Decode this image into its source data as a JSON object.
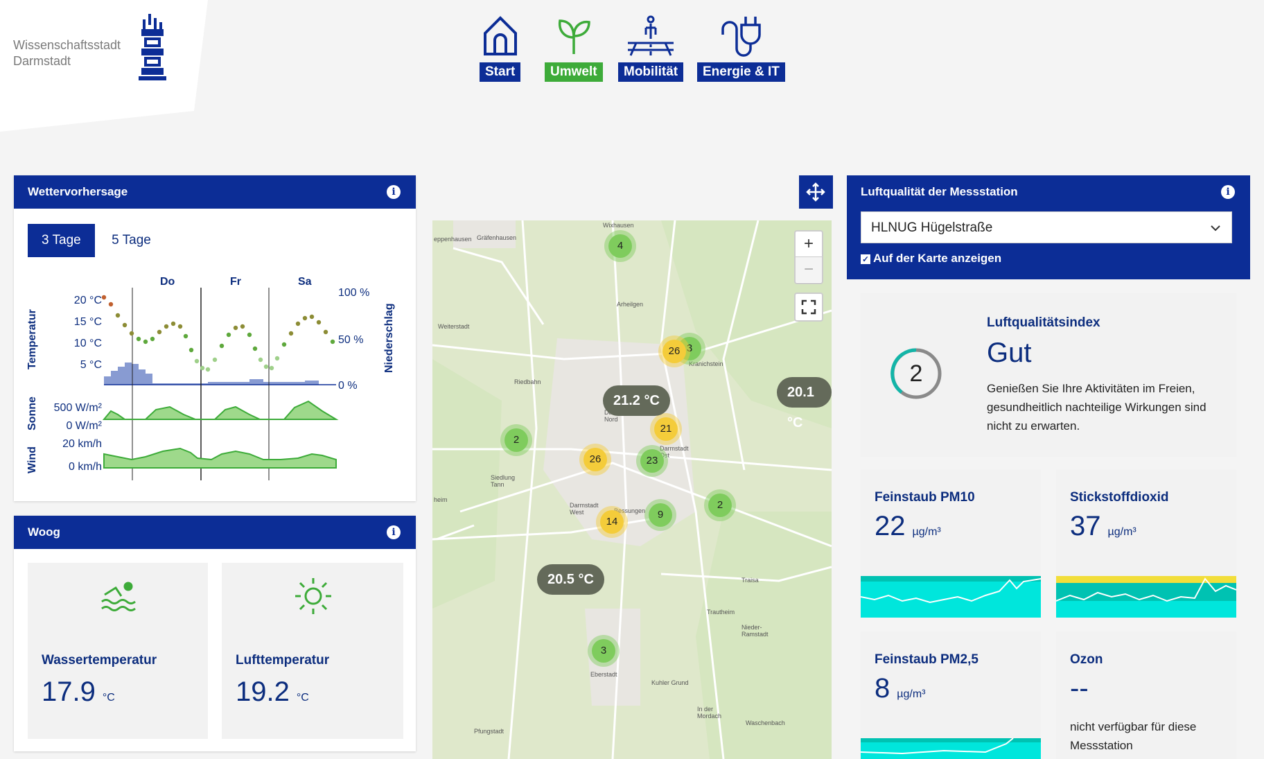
{
  "logo": {
    "line1": "Wissenschaftsstadt",
    "line2": "Darmstadt"
  },
  "nav": [
    {
      "label": "Start",
      "icon": "house-icon"
    },
    {
      "label": "Umwelt",
      "icon": "sprout-icon"
    },
    {
      "label": "Mobilität",
      "icon": "crossing-icon"
    },
    {
      "label": "Energie & IT",
      "icon": "plug-icon"
    }
  ],
  "weather": {
    "title": "Wettervorhersage",
    "tabs": [
      "3 Tage",
      "5 Tage"
    ],
    "active_tab": "3 Tage",
    "days": [
      "Do",
      "Fr",
      "Sa"
    ],
    "temp_ticks": [
      "20 °C",
      "15 °C",
      "10 °C",
      "5 °C"
    ],
    "precip_ticks": [
      "100 %",
      "50 %",
      "0 %"
    ],
    "sun_ticks": [
      "500 W/m²",
      "0 W/m²"
    ],
    "wind_ticks": [
      "20 km/h",
      "0 km/h"
    ],
    "axis_temp": "Temperatur",
    "axis_precip": "Niederschlag",
    "axis_sun": "Sonne",
    "axis_wind": "Wind"
  },
  "woog": {
    "title": "Woog",
    "water": {
      "label": "Wassertemperatur",
      "value": "17.9",
      "unit": "°C",
      "icon": "swimmer-icon"
    },
    "air": {
      "label": "Lufttemperatur",
      "value": "19.2",
      "unit": "°C",
      "icon": "sun-icon"
    }
  },
  "map": {
    "places": [
      "Wixhausen",
      "Gräfenhausen",
      "eppenhausen",
      "Arheilgen",
      "Weiterstadt",
      "Kranichstein",
      "Riedbahn",
      "Darmstadt-Nord",
      "Darmstadt Ost",
      "Siedlung Tann",
      "Darmstadt West",
      "Bessungen",
      "heim",
      "Traisa",
      "Trautheim",
      "Nieder-Ramstadt",
      "Eberstadt",
      "Kuhler Grund",
      "In der Mordach",
      "Pfungstadt",
      "Waschenbach"
    ],
    "clusters": [
      {
        "n": "4",
        "c": "g"
      },
      {
        "n": "26",
        "c": "y"
      },
      {
        "n": "3",
        "c": "g"
      },
      {
        "n": "21",
        "c": "y"
      },
      {
        "n": "2",
        "c": "g"
      },
      {
        "n": "26",
        "c": "y"
      },
      {
        "n": "23",
        "c": "g"
      },
      {
        "n": "9",
        "c": "g"
      },
      {
        "n": "2",
        "c": "g"
      },
      {
        "n": "14",
        "c": "y"
      },
      {
        "n": "3",
        "c": "g"
      }
    ],
    "temps": [
      "21.2 °C",
      "20.1 °C",
      "20.5 °C"
    ],
    "zoom_in": "+",
    "zoom_out": "−"
  },
  "air": {
    "title": "Luftqualität der Messstation",
    "station": "HLNUG Hügelstraße",
    "show_on_map": "Auf der Karte anzeigen",
    "index_label": "Luftqualitätsindex",
    "index_value": "2",
    "index_word": "Gut",
    "index_text": "Genießen Sie Ihre Aktivitäten im Freien, gesundheitlich nachteilige Wirkungen sind nicht zu erwarten.",
    "tiles": [
      {
        "label": "Feinstaub PM10",
        "value": "22",
        "unit": "µg/m³"
      },
      {
        "label": "Stickstoffdioxid",
        "value": "37",
        "unit": "µg/m³"
      },
      {
        "label": "Feinstaub PM2,5",
        "value": "8",
        "unit": "µg/m³"
      },
      {
        "label": "Ozon",
        "value": "--",
        "unit": "",
        "note": "nicht verfügbar für diese Messstation"
      }
    ]
  },
  "colors": {
    "brand_blue": "#0c2d96",
    "green": "#3dab39",
    "index_teal": "#13b5a8"
  }
}
